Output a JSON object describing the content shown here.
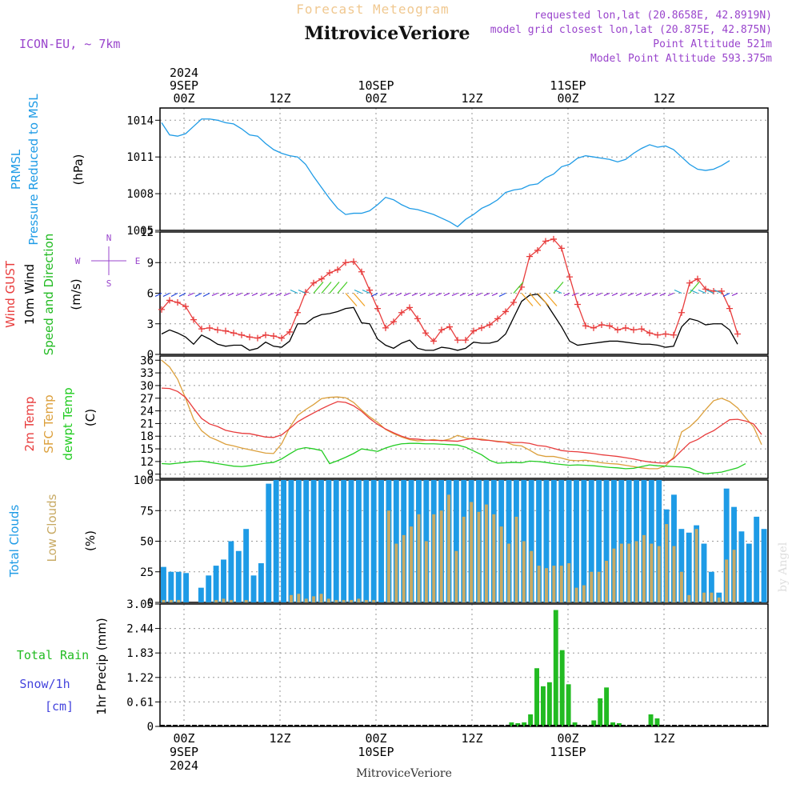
{
  "header": {
    "title": "Forecast Meteogram",
    "location": "MitroviceVeriore",
    "model": "ICON-EU, ~ 7km",
    "requested": "requested lon,lat (20.8658E, 42.8919N)",
    "closest": "model grid closest lon,lat (20.875E, 42.875N)",
    "point_alt": "Point Altitude 521m",
    "model_alt": "Model Point Altitude 593.375m",
    "footer": "MitroviceVeriore",
    "credit": "by Angel"
  },
  "colors": {
    "pressure": "#1e9be6",
    "gust": "#e83c3c",
    "wind": "#000000",
    "wind_label": "#22bb22",
    "temp": "#e83c3c",
    "sfc": "#dca03c",
    "dew": "#22cc22",
    "clouds_total": "#1e9be6",
    "clouds_low": "#c8aa64",
    "rain": "#22bb22",
    "snow": "#4444dd",
    "compass": "#9944cc"
  },
  "time_axis": {
    "top": [
      {
        "t": 3,
        "lines": [
          "2024",
          "9SEP",
          "00Z"
        ]
      },
      {
        "t": 15,
        "lines": [
          "12Z"
        ]
      },
      {
        "t": 27,
        "lines": [
          "10SEP",
          "00Z"
        ]
      },
      {
        "t": 39,
        "lines": [
          "12Z"
        ]
      },
      {
        "t": 51,
        "lines": [
          "11SEP",
          "00Z"
        ]
      },
      {
        "t": 63,
        "lines": [
          "12Z"
        ]
      }
    ],
    "bottom": [
      {
        "t": 3,
        "lines": [
          "00Z",
          "9SEP",
          "2024"
        ]
      },
      {
        "t": 15,
        "lines": [
          "12Z"
        ]
      },
      {
        "t": 27,
        "lines": [
          "00Z",
          "10SEP"
        ]
      },
      {
        "t": 39,
        "lines": [
          "12Z"
        ]
      },
      {
        "t": 51,
        "lines": [
          "00Z",
          "11SEP"
        ]
      },
      {
        "t": 63,
        "lines": [
          "12Z"
        ]
      }
    ]
  },
  "chart_data": [
    {
      "type": "line",
      "title": "PRMSL Pressure Reduced to MSL",
      "label_lines": [
        "PRMSL",
        "Pressure Reduced to MSL"
      ],
      "ylabel": "(hPa)",
      "ylim": [
        1005,
        1015
      ],
      "yticks": [
        "1005",
        "1008",
        "1011",
        "1014"
      ],
      "series": [
        {
          "name": "PRMSL",
          "values": [
            1013.8,
            1012.8,
            1012.7,
            1012.9,
            1013.5,
            1014.1,
            1014.1,
            1014.0,
            1013.8,
            1013.7,
            1013.3,
            1012.8,
            1012.7,
            1012.1,
            1011.6,
            1011.3,
            1011.1,
            1011.0,
            1010.4,
            1009.4,
            1008.5,
            1007.6,
            1006.8,
            1006.3,
            1006.4,
            1006.4,
            1006.6,
            1007.1,
            1007.7,
            1007.5,
            1007.1,
            1006.8,
            1006.7,
            1006.5,
            1006.3,
            1006.0,
            1005.7,
            1005.3,
            1005.9,
            1006.3,
            1006.8,
            1007.1,
            1007.5,
            1008.1,
            1008.3,
            1008.4,
            1008.7,
            1008.8,
            1009.3,
            1009.6,
            1010.2,
            1010.4,
            1010.9,
            1011.1,
            1011.0,
            1010.9,
            1010.8,
            1010.6,
            1010.8,
            1011.3,
            1011.7,
            1012.0,
            1011.8,
            1011.9,
            1011.6,
            1011.0,
            1010.4,
            1010.0,
            1009.9,
            1010.0,
            1010.3,
            1010.7
          ]
        }
      ]
    },
    {
      "type": "line",
      "title": "Wind GUST / 10m Wind Speed and Direction",
      "label_lines": [
        "Wind GUST",
        "10m Wind",
        "Speed and Direction"
      ],
      "ylabel": "(m/s)",
      "ylim": [
        0,
        12
      ],
      "yticks": [
        "0",
        "3",
        "6",
        "9",
        "12"
      ],
      "compass": [
        "N",
        "S",
        "W",
        "E"
      ],
      "series": [
        {
          "name": "Wind GUST",
          "values": [
            4.4,
            5.3,
            5.1,
            4.7,
            3.4,
            2.5,
            2.6,
            2.4,
            2.3,
            2.1,
            1.9,
            1.7,
            1.6,
            1.9,
            1.8,
            1.6,
            2.2,
            4.1,
            6.1,
            7.0,
            7.4,
            8.0,
            8.3,
            9.0,
            9.1,
            8.1,
            6.3,
            4.5,
            2.6,
            3.2,
            4.1,
            4.6,
            3.5,
            2.1,
            1.3,
            2.4,
            2.7,
            1.4,
            1.4,
            2.3,
            2.6,
            2.9,
            3.5,
            4.2,
            5.1,
            6.6,
            9.6,
            10.2,
            11.1,
            11.3,
            10.4,
            7.6,
            4.9,
            2.8,
            2.6,
            2.9,
            2.8,
            2.4,
            2.6,
            2.4,
            2.5,
            2.1,
            1.9,
            2.0,
            1.9,
            4.1,
            7.0,
            7.4,
            6.4,
            6.2,
            6.2,
            4.5,
            2.0
          ]
        },
        {
          "name": "10m Wind",
          "values": [
            2.0,
            2.4,
            2.1,
            1.7,
            1.0,
            1.9,
            1.5,
            1.0,
            0.8,
            0.9,
            0.9,
            0.4,
            0.6,
            1.2,
            0.8,
            0.7,
            1.3,
            3.0,
            3.0,
            3.6,
            3.9,
            4.0,
            4.2,
            4.5,
            4.6,
            3.1,
            3.0,
            1.5,
            0.9,
            0.6,
            1.1,
            1.4,
            0.6,
            0.4,
            0.4,
            0.7,
            0.6,
            0.4,
            0.6,
            1.2,
            1.1,
            1.1,
            1.3,
            2.0,
            3.6,
            5.2,
            5.8,
            5.9,
            5.1,
            3.9,
            2.7,
            1.3,
            0.9,
            1.0,
            1.1,
            1.2,
            1.3,
            1.3,
            1.2,
            1.1,
            1.0,
            1.0,
            0.9,
            0.7,
            0.8,
            2.7,
            3.5,
            3.3,
            2.9,
            3.0,
            3.0,
            2.4,
            1.0
          ]
        }
      ]
    },
    {
      "type": "line",
      "title": "2m Temp / SFC Temp / dewpt Temp",
      "label_lines": [
        "2m Temp",
        "SFC Temp",
        "dewpt Temp"
      ],
      "ylabel": "(C)",
      "ylim": [
        8,
        37
      ],
      "yticks": [
        "9",
        "12",
        "15",
        "18",
        "21",
        "24",
        "27",
        "30",
        "33",
        "36"
      ],
      "series": [
        {
          "name": "2m Temp",
          "values": [
            29.4,
            29.3,
            28.6,
            27.2,
            24.6,
            22.2,
            20.9,
            20.3,
            19.4,
            19.0,
            18.7,
            18.6,
            18.2,
            17.8,
            17.7,
            18.3,
            19.8,
            21.4,
            22.5,
            23.5,
            24.5,
            25.4,
            26.2,
            26.0,
            25.2,
            23.9,
            22.2,
            20.8,
            19.7,
            18.8,
            18.0,
            17.4,
            17.3,
            17.1,
            17.0,
            17.0,
            16.9,
            16.8,
            17.2,
            17.5,
            17.1,
            17.0,
            16.7,
            16.6,
            16.5,
            16.5,
            16.3,
            15.8,
            15.6,
            15.1,
            14.6,
            14.4,
            14.3,
            14.1,
            13.9,
            13.6,
            13.4,
            13.2,
            12.9,
            12.6,
            12.2,
            11.9,
            11.7,
            11.6,
            12.7,
            14.6,
            16.4,
            17.2,
            18.4,
            19.3,
            20.6,
            21.9,
            22.0,
            21.6,
            20.9,
            18.4
          ]
        },
        {
          "name": "SFC Temp",
          "values": [
            36.0,
            34.4,
            31.5,
            27.0,
            22.0,
            19.3,
            17.8,
            17.0,
            16.1,
            15.7,
            15.2,
            14.8,
            14.4,
            14.0,
            13.9,
            16.2,
            20.0,
            22.9,
            24.3,
            25.5,
            26.9,
            27.2,
            27.3,
            27.1,
            26.0,
            24.2,
            22.6,
            21.3,
            19.6,
            18.6,
            17.8,
            17.2,
            16.9,
            17.0,
            17.2,
            16.9,
            17.3,
            18.2,
            17.6,
            17.3,
            17.3,
            17.0,
            16.8,
            16.6,
            15.9,
            15.7,
            14.7,
            13.6,
            13.2,
            13.2,
            12.8,
            12.3,
            12.2,
            12.3,
            12.0,
            11.7,
            11.5,
            11.4,
            11.1,
            10.8,
            10.5,
            10.3,
            10.3,
            11.0,
            13.0,
            19.0,
            20.2,
            22.0,
            24.3,
            26.4,
            27.0,
            26.2,
            24.7,
            22.4,
            20.2,
            16.0
          ]
        },
        {
          "name": "dewpt Temp",
          "values": [
            11.5,
            11.4,
            11.6,
            11.8,
            12.0,
            12.1,
            11.8,
            11.5,
            11.2,
            10.9,
            10.8,
            11.0,
            11.3,
            11.6,
            11.8,
            12.6,
            13.8,
            14.9,
            15.3,
            15.0,
            14.6,
            11.5,
            12.2,
            13.0,
            13.9,
            15.0,
            14.7,
            14.4,
            15.2,
            15.8,
            16.2,
            16.3,
            16.3,
            16.2,
            16.2,
            16.1,
            16.0,
            15.9,
            15.4,
            14.5,
            13.6,
            12.3,
            11.6,
            11.7,
            11.8,
            11.7,
            12.1,
            12.0,
            11.8,
            11.5,
            11.3,
            11.1,
            11.2,
            11.1,
            11.0,
            10.8,
            10.6,
            10.5,
            10.3,
            10.4,
            10.8,
            11.2,
            11.0,
            10.9,
            10.8,
            10.7,
            10.5,
            9.6,
            9.1,
            9.3,
            9.5,
            10.0,
            10.5,
            11.5
          ]
        }
      ]
    },
    {
      "type": "bar",
      "title": "Total Clouds / Low Clouds",
      "label_lines": [
        "Total Clouds",
        "Low Clouds"
      ],
      "ylabel": "(%)",
      "ylim": [
        0,
        100
      ],
      "yticks": [
        "0",
        "25",
        "50",
        "75",
        "100"
      ],
      "series": [
        {
          "name": "Total Clouds",
          "values": [
            29,
            25,
            25,
            24,
            0,
            12,
            22,
            30,
            35,
            50,
            42,
            60,
            22,
            32,
            97,
            100,
            100,
            100,
            100,
            100,
            100,
            100,
            100,
            100,
            100,
            100,
            100,
            100,
            100,
            100,
            100,
            100,
            100,
            100,
            100,
            100,
            100,
            100,
            100,
            100,
            100,
            100,
            100,
            100,
            100,
            100,
            100,
            100,
            100,
            100,
            100,
            100,
            100,
            100,
            100,
            100,
            100,
            100,
            100,
            100,
            100,
            100,
            100,
            100,
            100,
            100,
            100,
            76,
            88,
            60,
            57,
            63,
            48,
            25,
            8,
            93,
            78,
            58,
            48,
            70,
            60
          ]
        },
        {
          "name": "Low Clouds",
          "values": [
            2,
            2,
            2,
            0,
            0,
            0,
            0,
            2,
            3,
            2,
            0,
            2,
            0,
            0,
            0,
            0,
            0,
            6,
            7,
            3,
            5,
            7,
            3,
            2,
            2,
            2,
            3,
            2,
            2,
            0,
            75,
            48,
            55,
            62,
            72,
            50,
            72,
            75,
            88,
            42,
            70,
            82,
            74,
            80,
            72,
            62,
            48,
            70,
            50,
            42,
            30,
            28,
            30,
            30,
            32,
            12,
            14,
            25,
            25,
            34,
            44,
            48,
            48,
            50,
            55,
            48,
            46,
            64,
            46,
            25,
            6,
            60,
            8,
            8,
            4,
            35,
            43
          ]
        }
      ]
    },
    {
      "type": "bar",
      "title": "1hr Precip",
      "label_lines": [
        "Total  Rain",
        "Snow/1h",
        "[cm]"
      ],
      "ylabel": "1hr Precip (mm)",
      "ylim": [
        0,
        3.05
      ],
      "yticks": [
        "0",
        "0.61",
        "1.22",
        "1.83",
        "2.44",
        "3.05"
      ],
      "series": [
        {
          "name": "Total Rain",
          "values": [
            0,
            0,
            0,
            0,
            0,
            0,
            0,
            0,
            0,
            0,
            0,
            0,
            0,
            0,
            0,
            0,
            0,
            0,
            0,
            0,
            0,
            0,
            0,
            0,
            0,
            0,
            0,
            0,
            0,
            0,
            0,
            0,
            0,
            0,
            0,
            0,
            0,
            0,
            0,
            0,
            0,
            0,
            0,
            0,
            0,
            0,
            0,
            0,
            0,
            0,
            0,
            0,
            0,
            0,
            0,
            0.1,
            0.08,
            0.1,
            0.3,
            1.45,
            1.0,
            1.1,
            2.9,
            1.9,
            1.05,
            0.1,
            0,
            0,
            0.15,
            0.7,
            0.97,
            0.1,
            0.08,
            0,
            0,
            0,
            0,
            0.3,
            0.2,
            0,
            0,
            0,
            0,
            0,
            0,
            0,
            0,
            0,
            0,
            0,
            0,
            0,
            0,
            0,
            0,
            0,
            0,
            0,
            0,
            0
          ]
        }
      ]
    }
  ]
}
